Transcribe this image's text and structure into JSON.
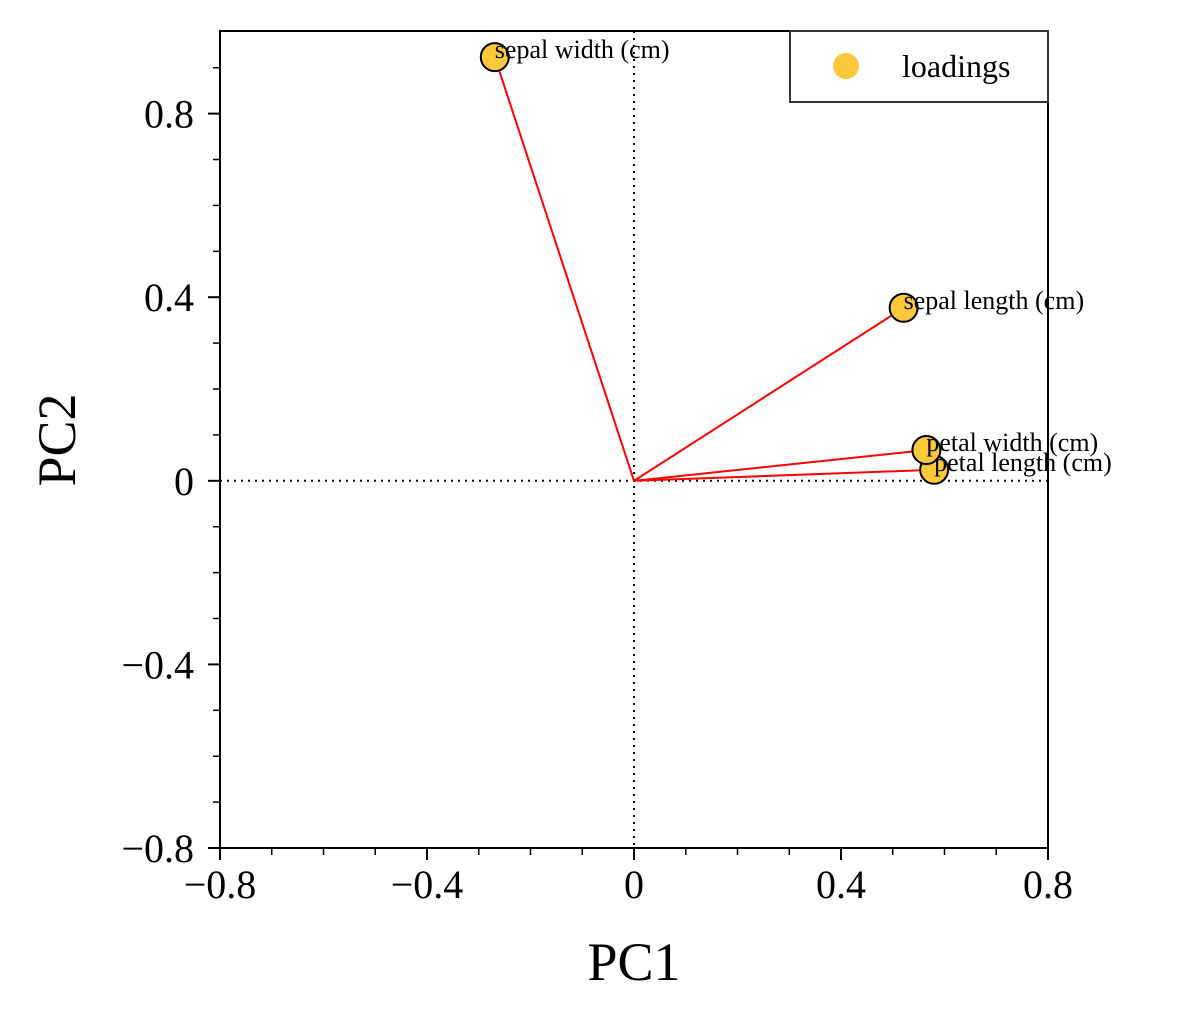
{
  "chart_data": {
    "type": "scatter",
    "xlabel": "PC1",
    "ylabel": "PC2",
    "xlim": [
      -0.8,
      0.8
    ],
    "ylim": [
      -0.8,
      0.98
    ],
    "xticks": [
      -0.8,
      -0.4,
      0,
      0.4,
      0.8
    ],
    "xtick_labels": [
      "−0.8",
      "−0.4",
      "0",
      "0.4",
      "0.8"
    ],
    "yticks": [
      -0.8,
      -0.4,
      0,
      0.4,
      0.8
    ],
    "ytick_labels": [
      "−0.8",
      "−0.4",
      "0",
      "0.4",
      "0.8"
    ],
    "minor_tick_step": 0.1,
    "reference_lines": {
      "x": 0,
      "y": 0,
      "style": "dotted",
      "color": "#000000"
    },
    "legend": {
      "position": "top-right",
      "entries": [
        "loadings"
      ]
    },
    "series": [
      {
        "name": "loadings",
        "marker_color": "#fbc83a",
        "edge_color": "#000000",
        "vector_color": "#ff0000",
        "points": [
          {
            "label": "sepal length (cm)",
            "x": 0.521,
            "y": 0.377
          },
          {
            "label": "sepal width (cm)",
            "x": -0.269,
            "y": 0.923
          },
          {
            "label": "petal length (cm)",
            "x": 0.58,
            "y": 0.024
          },
          {
            "label": "petal width (cm)",
            "x": 0.565,
            "y": 0.067
          }
        ]
      }
    ]
  }
}
